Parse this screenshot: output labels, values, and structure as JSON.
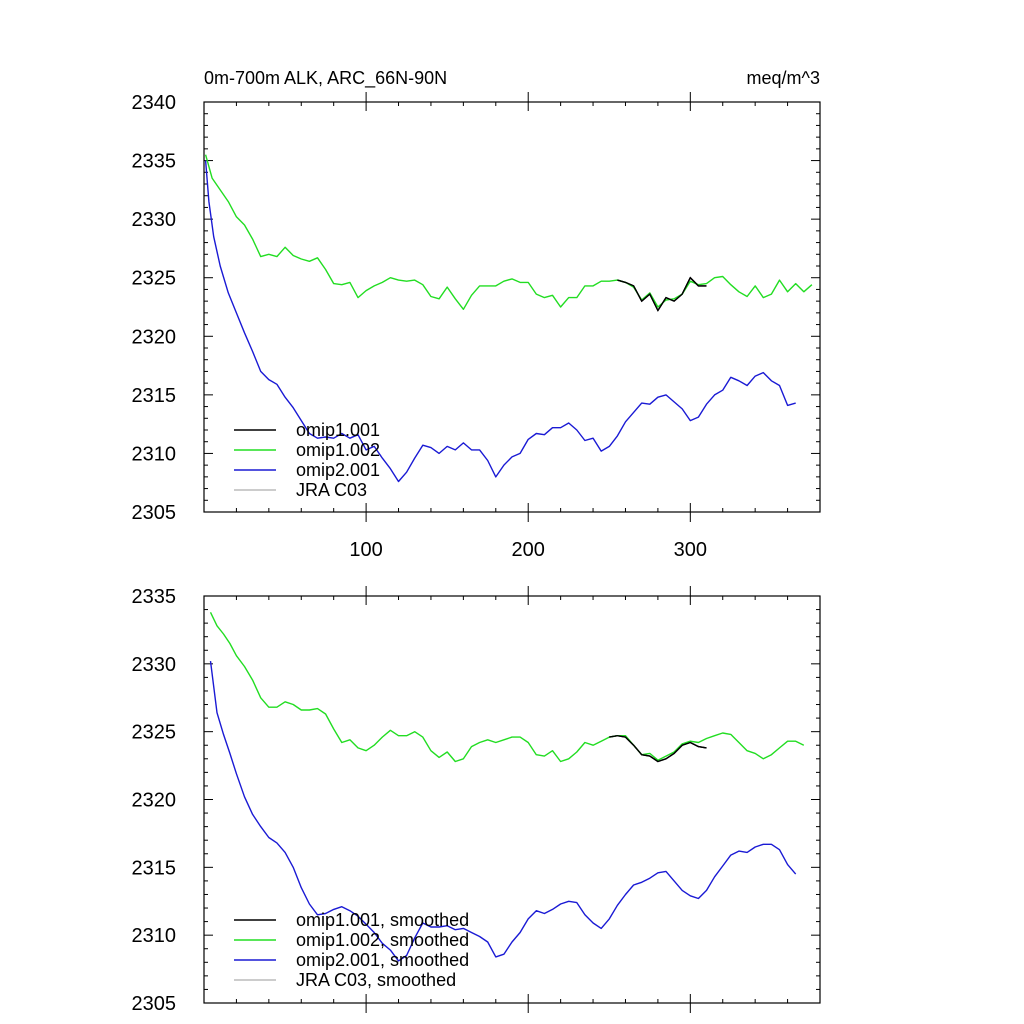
{
  "title_left": "0m-700m ALK, ARC_66N-90N",
  "title_right": "meq/m^3",
  "chart_data": [
    {
      "type": "line",
      "panel": "top",
      "xlim": [
        0,
        380
      ],
      "ylim": [
        2305,
        2340
      ],
      "xticks": [
        100,
        200,
        300
      ],
      "xtick_labels": [
        "100",
        "200",
        "300"
      ],
      "yticks": [
        2305,
        2310,
        2315,
        2320,
        2325,
        2330,
        2335,
        2340
      ],
      "ytick_labels": [
        "2305",
        "2310",
        "2315",
        "2320",
        "2325",
        "2330",
        "2335",
        "2340"
      ],
      "legend_placement": "bottom-left",
      "series": [
        {
          "name": "omip1.001",
          "color": "#000000",
          "x": [
            255,
            260,
            265,
            270,
            275,
            280,
            285,
            290,
            295,
            300,
            305,
            310
          ],
          "y": [
            2324.8,
            2324.6,
            2324.3,
            2323.0,
            2323.6,
            2322.2,
            2323.3,
            2323.0,
            2323.6,
            2325.0,
            2324.3,
            2324.3
          ]
        },
        {
          "name": "omip1.002",
          "color": "#22dd22",
          "x": [
            1,
            5,
            10,
            15,
            20,
            25,
            30,
            35,
            40,
            45,
            50,
            55,
            60,
            65,
            70,
            75,
            80,
            85,
            90,
            95,
            100,
            105,
            110,
            115,
            120,
            125,
            130,
            135,
            140,
            145,
            150,
            155,
            160,
            165,
            170,
            175,
            180,
            185,
            190,
            195,
            200,
            205,
            210,
            215,
            220,
            225,
            230,
            235,
            240,
            245,
            250,
            255,
            260,
            265,
            270,
            275,
            280,
            285,
            290,
            295,
            300,
            305,
            310,
            315,
            320,
            325,
            330,
            335,
            340,
            345,
            350,
            355,
            360,
            365,
            370,
            375
          ],
          "y": [
            2335.5,
            2333.5,
            2332.5,
            2331.5,
            2330.2,
            2329.5,
            2328.3,
            2326.8,
            2327.0,
            2326.8,
            2327.6,
            2326.9,
            2326.6,
            2326.4,
            2326.7,
            2325.7,
            2324.5,
            2324.4,
            2324.6,
            2323.3,
            2323.9,
            2324.3,
            2324.6,
            2325.0,
            2324.8,
            2324.7,
            2324.8,
            2324.4,
            2323.4,
            2323.2,
            2324.2,
            2323.2,
            2322.3,
            2323.5,
            2324.3,
            2324.3,
            2324.3,
            2324.7,
            2324.9,
            2324.6,
            2324.6,
            2323.6,
            2323.3,
            2323.5,
            2322.5,
            2323.3,
            2323.3,
            2324.3,
            2324.3,
            2324.7,
            2324.7,
            2324.8,
            2324.6,
            2324.2,
            2323.1,
            2323.7,
            2322.5,
            2323.1,
            2323.2,
            2323.6,
            2324.7,
            2324.4,
            2324.5,
            2325.0,
            2325.1,
            2324.4,
            2323.8,
            2323.4,
            2324.3,
            2323.3,
            2323.6,
            2324.8,
            2323.8,
            2324.5,
            2323.8,
            2324.4
          ]
        },
        {
          "name": "omip2.001",
          "color": "#1a1ad4",
          "x": [
            1,
            3,
            6,
            10,
            15,
            20,
            25,
            30,
            35,
            40,
            45,
            50,
            55,
            60,
            65,
            70,
            75,
            80,
            85,
            90,
            95,
            100,
            105,
            110,
            115,
            120,
            125,
            130,
            135,
            140,
            145,
            150,
            155,
            160,
            165,
            170,
            175,
            180,
            185,
            190,
            195,
            200,
            205,
            210,
            215,
            220,
            225,
            230,
            235,
            240,
            245,
            250,
            255,
            260,
            265,
            270,
            275,
            280,
            285,
            290,
            295,
            300,
            305,
            310,
            315,
            320,
            325,
            330,
            335,
            340,
            345,
            350,
            355,
            360,
            365
          ],
          "y": [
            2335.0,
            2331.5,
            2328.5,
            2326.0,
            2323.7,
            2322.0,
            2320.3,
            2318.7,
            2317.0,
            2316.3,
            2315.9,
            2314.8,
            2313.9,
            2312.8,
            2311.7,
            2311.3,
            2311.4,
            2311.3,
            2311.7,
            2311.3,
            2311.6,
            2310.3,
            2310.6,
            2309.6,
            2308.7,
            2307.6,
            2308.4,
            2309.6,
            2310.7,
            2310.5,
            2310.0,
            2310.6,
            2310.3,
            2310.9,
            2310.3,
            2310.3,
            2309.4,
            2308.0,
            2309.0,
            2309.7,
            2310.0,
            2311.2,
            2311.7,
            2311.6,
            2312.2,
            2312.2,
            2312.6,
            2312.0,
            2311.1,
            2311.3,
            2310.2,
            2310.6,
            2311.5,
            2312.7,
            2313.5,
            2314.3,
            2314.2,
            2314.8,
            2315.0,
            2314.4,
            2313.8,
            2312.8,
            2313.1,
            2314.2,
            2315.0,
            2315.4,
            2316.5,
            2316.2,
            2315.8,
            2316.6,
            2316.9,
            2316.2,
            2315.8,
            2314.1,
            2314.3
          ]
        },
        {
          "name": "JRA C03",
          "color": "#bbbbbb",
          "x": [],
          "y": []
        }
      ]
    },
    {
      "type": "line",
      "panel": "bottom",
      "xlim": [
        0,
        380
      ],
      "ylim": [
        2305,
        2335
      ],
      "xticks": [
        100,
        200,
        300
      ],
      "xtick_labels": [],
      "yticks": [
        2305,
        2310,
        2315,
        2320,
        2325,
        2330,
        2335
      ],
      "ytick_labels": [
        "2305",
        "2310",
        "2315",
        "2320",
        "2325",
        "2330",
        "2335"
      ],
      "legend_placement": "bottom-left",
      "series": [
        {
          "name": "omip1.001, smoothed",
          "color": "#000000",
          "x": [
            250,
            255,
            260,
            265,
            270,
            275,
            280,
            285,
            290,
            295,
            300,
            305,
            310
          ],
          "y": [
            2324.6,
            2324.7,
            2324.6,
            2324.0,
            2323.3,
            2323.2,
            2322.8,
            2323.0,
            2323.4,
            2324.0,
            2324.2,
            2323.9,
            2323.8
          ]
        },
        {
          "name": "omip1.002, smoothed",
          "color": "#22dd22",
          "x": [
            4,
            8,
            12,
            16,
            20,
            25,
            30,
            35,
            40,
            45,
            50,
            55,
            60,
            65,
            70,
            75,
            80,
            85,
            90,
            95,
            100,
            105,
            110,
            115,
            120,
            125,
            130,
            135,
            140,
            145,
            150,
            155,
            160,
            165,
            170,
            175,
            180,
            185,
            190,
            195,
            200,
            205,
            210,
            215,
            220,
            225,
            230,
            235,
            240,
            245,
            250,
            255,
            260,
            265,
            270,
            275,
            280,
            285,
            290,
            295,
            300,
            305,
            310,
            315,
            320,
            325,
            330,
            335,
            340,
            345,
            350,
            355,
            360,
            365,
            370
          ],
          "y": [
            2333.8,
            2332.8,
            2332.2,
            2331.5,
            2330.6,
            2329.8,
            2328.8,
            2327.5,
            2326.8,
            2326.8,
            2327.2,
            2327.0,
            2326.6,
            2326.6,
            2326.7,
            2326.3,
            2325.2,
            2324.2,
            2324.4,
            2323.8,
            2323.6,
            2324.0,
            2324.6,
            2325.1,
            2324.7,
            2324.7,
            2325.0,
            2324.6,
            2323.6,
            2323.1,
            2323.5,
            2322.8,
            2323.0,
            2323.9,
            2324.2,
            2324.4,
            2324.2,
            2324.4,
            2324.6,
            2324.6,
            2324.2,
            2323.3,
            2323.2,
            2323.6,
            2322.8,
            2323.0,
            2323.5,
            2324.2,
            2324.0,
            2324.3,
            2324.6,
            2324.7,
            2324.7,
            2324.0,
            2323.3,
            2323.4,
            2322.9,
            2323.2,
            2323.5,
            2324.1,
            2324.3,
            2324.2,
            2324.5,
            2324.7,
            2324.9,
            2324.8,
            2324.2,
            2323.6,
            2323.4,
            2323.0,
            2323.3,
            2323.8,
            2324.3,
            2324.3,
            2324.0
          ]
        },
        {
          "name": "omip2.001, smoothed",
          "color": "#1a1ad4",
          "x": [
            4,
            8,
            12,
            16,
            20,
            25,
            30,
            35,
            40,
            45,
            50,
            55,
            60,
            65,
            70,
            75,
            80,
            85,
            90,
            95,
            100,
            105,
            110,
            115,
            120,
            125,
            130,
            135,
            140,
            145,
            150,
            155,
            160,
            165,
            170,
            175,
            180,
            185,
            190,
            195,
            200,
            205,
            210,
            215,
            220,
            225,
            230,
            235,
            240,
            245,
            250,
            255,
            260,
            265,
            270,
            275,
            280,
            285,
            290,
            295,
            300,
            305,
            310,
            315,
            320,
            325,
            330,
            335,
            340,
            345,
            350,
            355,
            360,
            365
          ],
          "y": [
            2330.2,
            2326.4,
            2324.8,
            2323.4,
            2321.9,
            2320.2,
            2318.9,
            2318.0,
            2317.2,
            2316.8,
            2316.1,
            2315.0,
            2313.5,
            2312.3,
            2311.5,
            2311.6,
            2311.9,
            2312.1,
            2311.8,
            2311.4,
            2310.8,
            2310.2,
            2309.4,
            2308.9,
            2308.1,
            2308.5,
            2309.8,
            2310.9,
            2310.6,
            2310.6,
            2310.7,
            2310.4,
            2310.5,
            2310.2,
            2309.9,
            2309.5,
            2308.4,
            2308.6,
            2309.5,
            2310.2,
            2311.2,
            2311.8,
            2311.6,
            2311.9,
            2312.3,
            2312.5,
            2312.4,
            2311.5,
            2310.9,
            2310.5,
            2311.2,
            2312.2,
            2313.0,
            2313.7,
            2313.9,
            2314.2,
            2314.6,
            2314.7,
            2314.0,
            2313.3,
            2312.9,
            2312.7,
            2313.3,
            2314.3,
            2315.1,
            2315.9,
            2316.2,
            2316.1,
            2316.5,
            2316.7,
            2316.7,
            2316.3,
            2315.2,
            2314.5
          ]
        },
        {
          "name": "JRA C03, smoothed",
          "color": "#bbbbbb",
          "x": [],
          "y": []
        }
      ]
    }
  ]
}
